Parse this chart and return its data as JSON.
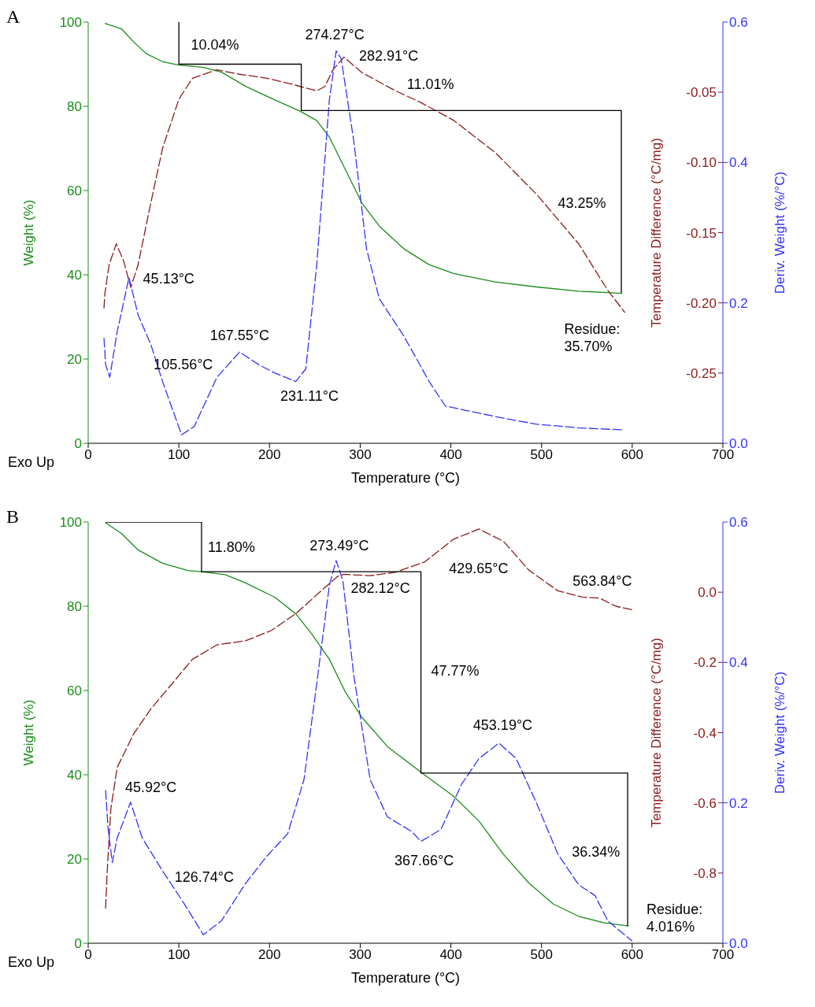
{
  "chart_data": [
    {
      "type": "line",
      "title": "A",
      "xlabel": "Temperature (°C)",
      "ylabel": "Weight (%)",
      "y2label": "Temperature Difference (°C/mg)",
      "y3label": "Deriv. Weight (%/°C)",
      "xlim": [
        0,
        700
      ],
      "xticks": [
        0,
        100,
        200,
        300,
        400,
        500,
        600,
        700
      ],
      "ylim": [
        0,
        100
      ],
      "yticks": [
        0,
        20,
        40,
        60,
        80,
        100
      ],
      "y2lim": [
        -0.3,
        0
      ],
      "y2ticks": [
        {
          "value": -0.25,
          "label": "-0.25"
        },
        {
          "value": -0.2,
          "label": "-0.20"
        },
        {
          "value": -0.15,
          "label": "-0.15"
        },
        {
          "value": -0.1,
          "label": "-0.10"
        },
        {
          "value": -0.05,
          "label": "-0.05"
        }
      ],
      "y3lim": [
        0,
        0.6
      ],
      "y3ticks": [
        {
          "value": 0,
          "label": "0.0"
        },
        {
          "value": 0.2,
          "label": "0.2"
        },
        {
          "value": 0.4,
          "label": "0.4"
        },
        {
          "value": 0.6,
          "label": "0.6"
        }
      ],
      "series": [
        {
          "color": "#1a8c1a",
          "axis": "y",
          "line_style": "solid",
          "x": [
            18.3,
            36.6,
            50,
            64,
            82,
            100,
            128,
            147,
            174,
            202,
            234,
            252,
            266,
            284,
            302,
            321,
            348,
            376,
            403,
            449,
            495,
            541,
            589
          ],
          "values": [
            99.7,
            98.4,
            95.3,
            92.5,
            90.6,
            89.8,
            89.2,
            88.1,
            84.7,
            81.9,
            78.8,
            76.6,
            72.7,
            64.8,
            57,
            51.6,
            46.2,
            42.4,
            40.3,
            38.3,
            37.1,
            36.1,
            35.6
          ]
        },
        {
          "color": "#8b1a1a",
          "axis": "y2",
          "line_style": "dashed",
          "x": [
            17.4,
            18.3,
            23,
            31,
            39,
            47,
            55,
            69,
            82,
            100,
            115,
            142,
            165,
            197,
            229,
            252,
            261,
            270,
            282,
            302,
            339,
            366,
            403,
            449,
            495,
            541,
            573,
            592
          ],
          "values": [
            -0.204,
            -0.194,
            -0.173,
            -0.158,
            -0.17,
            -0.189,
            -0.173,
            -0.129,
            -0.09,
            -0.055,
            -0.04,
            -0.034,
            -0.037,
            -0.04,
            -0.045,
            -0.049,
            -0.046,
            -0.034,
            -0.025,
            -0.036,
            -0.049,
            -0.057,
            -0.07,
            -0.093,
            -0.123,
            -0.158,
            -0.191,
            -0.207
          ]
        },
        {
          "color": "#3333ff",
          "axis": "y3",
          "line_style": "dashed",
          "x": [
            17.4,
            19.2,
            23.8,
            32,
            45,
            55,
            69,
            82,
            103,
            117,
            142,
            167,
            188,
            206,
            229,
            240,
            252,
            266,
            273.5,
            279,
            293,
            307,
            321,
            348,
            376,
            394,
            449,
            495,
            541,
            591
          ],
          "values": [
            0.15,
            0.112,
            0.094,
            0.159,
            0.236,
            0.183,
            0.141,
            0.088,
            0.012,
            0.024,
            0.094,
            0.13,
            0.112,
            0.1,
            0.088,
            0.106,
            0.253,
            0.489,
            0.559,
            0.548,
            0.43,
            0.277,
            0.206,
            0.153,
            0.088,
            0.053,
            0.038,
            0.027,
            0.022,
            0.019
          ]
        },
        {
          "color": "#000000",
          "axis": "y",
          "line_style": "solid",
          "x": [
            100,
            100,
            235,
            235,
            588,
            588
          ],
          "values": [
            100,
            90,
            90,
            79,
            79,
            35.7
          ]
        }
      ],
      "annotations": [
        "10.04%",
        "274.27°C",
        "282.91°C",
        "11.01%",
        "43.25%",
        "Residue:\n35.70%",
        "45.13°C",
        "167.55°C",
        "105.56°C",
        "231.11°C",
        "Exo Up"
      ]
    },
    {
      "type": "line",
      "title": "B",
      "xlabel": "Temperature (°C)",
      "ylabel": "Weight (%)",
      "y2label": "Temperature Difference (°C/mg)",
      "y3label": "Deriv. Weight (%/°C)",
      "xlim": [
        0,
        700
      ],
      "xticks": [
        0,
        100,
        200,
        300,
        400,
        500,
        600,
        700
      ],
      "ylim": [
        0,
        100
      ],
      "yticks": [
        0,
        20,
        40,
        60,
        80,
        100
      ],
      "y2lim": [
        -1,
        0.2
      ],
      "y2ticks": [
        {
          "value": -0.8,
          "label": "-0.8"
        },
        {
          "value": -0.6,
          "label": "-0.6"
        },
        {
          "value": -0.4,
          "label": "-0.4"
        },
        {
          "value": -0.2,
          "label": "-0.2"
        },
        {
          "value": 0,
          "label": "0.0"
        }
      ],
      "y3lim": [
        0,
        0.6
      ],
      "y3ticks": [
        {
          "value": 0,
          "label": "0.0"
        },
        {
          "value": 0.2,
          "label": "0.2"
        },
        {
          "value": 0.4,
          "label": "0.4"
        },
        {
          "value": 0.6,
          "label": "0.6"
        }
      ],
      "series": [
        {
          "color": "#1a8c1a",
          "axis": "y",
          "line_style": "solid",
          "x": [
            19.2,
            36.6,
            54.9,
            82,
            110,
            124.6,
            151,
            174,
            206,
            229,
            247,
            266,
            284,
            302,
            330,
            367,
            403,
            431,
            458,
            486,
            513,
            541,
            568,
            596
          ],
          "values": [
            99.8,
            97.3,
            93.4,
            90.2,
            88.5,
            88.2,
            87.5,
            85.5,
            82.1,
            78.2,
            73.3,
            67.4,
            59.5,
            53.6,
            46.7,
            40.6,
            34.9,
            29,
            21.1,
            14.3,
            9.3,
            6.4,
            4.9,
            4.1
          ]
        },
        {
          "color": "#8b1a1a",
          "axis": "y2",
          "line_style": "dashed",
          "x": [
            19.2,
            21,
            25,
            32,
            41,
            50,
            69,
            92,
            115,
            142,
            174,
            202,
            229,
            257,
            275,
            282,
            311,
            339,
            371,
            403,
            431,
            458,
            486,
            518,
            545,
            564,
            582,
            600
          ],
          "values": [
            -0.901,
            -0.794,
            -0.617,
            -0.499,
            -0.452,
            -0.404,
            -0.333,
            -0.262,
            -0.191,
            -0.15,
            -0.138,
            -0.109,
            -0.061,
            0.004,
            0.045,
            0.051,
            0.047,
            0.057,
            0.086,
            0.151,
            0.18,
            0.145,
            0.063,
            0.004,
            -0.014,
            -0.017,
            -0.04,
            -0.05
          ]
        },
        {
          "color": "#3333ff",
          "axis": "y3",
          "line_style": "dashed",
          "x": [
            19.2,
            22,
            26.6,
            32,
            46.7,
            59.6,
            82,
            106,
            127,
            147,
            174,
            197,
            220,
            238,
            252,
            266,
            273.5,
            281,
            293,
            311,
            330,
            357,
            367,
            389,
            412,
            431,
            453,
            472,
            495,
            518,
            541,
            559,
            573,
            600
          ],
          "values": [
            0.218,
            0.162,
            0.115,
            0.15,
            0.201,
            0.15,
            0.103,
            0.056,
            0.012,
            0.032,
            0.086,
            0.124,
            0.156,
            0.233,
            0.369,
            0.51,
            0.545,
            0.516,
            0.381,
            0.233,
            0.18,
            0.159,
            0.145,
            0.162,
            0.227,
            0.263,
            0.285,
            0.263,
            0.198,
            0.127,
            0.083,
            0.068,
            0.032,
            0.003
          ]
        },
        {
          "color": "#000000",
          "axis": "y",
          "line_style": "solid",
          "x": [
            19,
            125,
            125,
            367,
            367,
            595,
            595
          ],
          "values": [
            100,
            100,
            88.2,
            88.2,
            40.4,
            40.4,
            4.0
          ]
        }
      ],
      "annotations": [
        "11.80%",
        "273.49°C",
        "282.12°C",
        "429.65°C",
        "563.84°C",
        "47.77%",
        "453.19°C",
        "45.92°C",
        "367.66°C",
        "36.34%",
        "126.74°C",
        "Residue:\n4.016%",
        "Exo Up"
      ]
    }
  ]
}
